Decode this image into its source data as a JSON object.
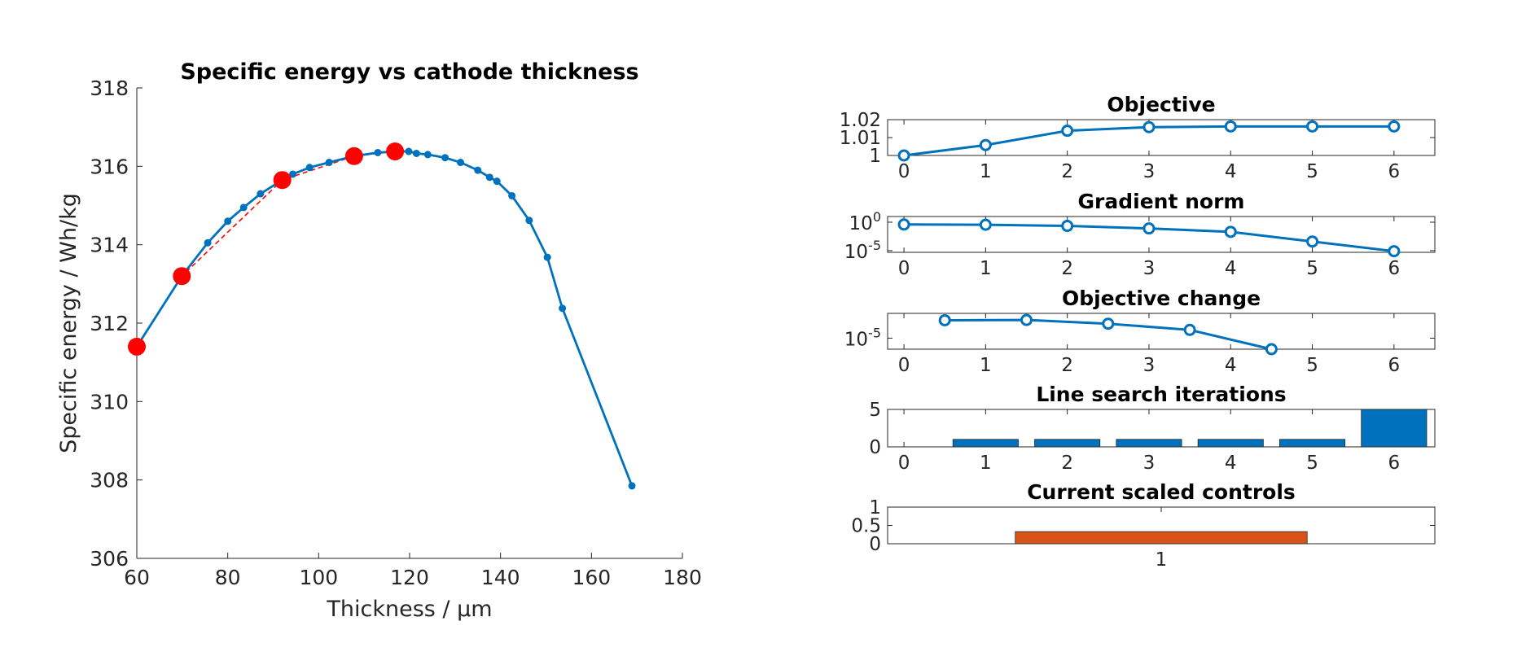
{
  "chart_data": [
    {
      "type": "line",
      "title": "Specific energy vs cathode thickness",
      "xlabel": "Thickness / µm",
      "ylabel": "Specific energy / Wh/kg",
      "xlim": [
        60,
        180
      ],
      "ylim": [
        306,
        318
      ],
      "x_ticks": [
        "60",
        "80",
        "100",
        "120",
        "140",
        "160",
        "180"
      ],
      "y_ticks": [
        "306",
        "308",
        "310",
        "312",
        "314",
        "316",
        "318"
      ],
      "grid": false,
      "series": [
        {
          "style": "solid-blue-dots",
          "color": "#0072BD",
          "points": [
            [
              60,
              311.4
            ],
            [
              69.9,
              313.2
            ],
            [
              75.6,
              314.05
            ],
            [
              80,
              314.6
            ],
            [
              83.5,
              314.95
            ],
            [
              87.2,
              315.3
            ],
            [
              92,
              315.65
            ],
            [
              94.3,
              315.8
            ],
            [
              98,
              315.97
            ],
            [
              102.3,
              316.1
            ],
            [
              107.8,
              316.26
            ],
            [
              113,
              316.35
            ],
            [
              116.8,
              316.38
            ],
            [
              119.8,
              316.38
            ],
            [
              121.5,
              316.33
            ],
            [
              124,
              316.3
            ],
            [
              127.8,
              316.22
            ],
            [
              131.2,
              316.1
            ],
            [
              135,
              315.9
            ],
            [
              137.6,
              315.72
            ],
            [
              139.2,
              315.62
            ],
            [
              142.5,
              315.25
            ],
            [
              146.3,
              314.62
            ],
            [
              150.3,
              313.68
            ],
            [
              153.6,
              312.38
            ],
            [
              168.9,
              307.85
            ]
          ]
        },
        {
          "style": "dashed-red",
          "color": "#FF0000",
          "points": [
            [
              60,
              311.4
            ],
            [
              69.9,
              313.2
            ],
            [
              92,
              315.65
            ],
            [
              107.8,
              316.26
            ],
            [
              116.8,
              316.38
            ]
          ]
        },
        {
          "style": "red-markers",
          "color": "#FF0000",
          "points": [
            [
              60,
              311.4
            ],
            [
              69.9,
              313.2
            ],
            [
              92,
              315.65
            ],
            [
              107.8,
              316.26
            ],
            [
              116.8,
              316.38
            ]
          ]
        }
      ]
    },
    {
      "type": "line",
      "title": "Objective",
      "x_ticks": [
        "0",
        "1",
        "2",
        "3",
        "4",
        "5",
        "6"
      ],
      "y_ticks": [
        "1",
        "1.01",
        "1.02"
      ],
      "xlim": [
        -0.2,
        6.5
      ],
      "ylim": [
        1,
        1.02
      ],
      "series": [
        {
          "color": "#0072BD",
          "x": [
            0,
            1,
            2,
            3,
            4,
            5,
            6
          ],
          "values": [
            1.0,
            1.0058,
            1.0138,
            1.0158,
            1.0162,
            1.0162,
            1.0162
          ]
        }
      ]
    },
    {
      "type": "line",
      "title": "Gradient norm",
      "y_scale": "log",
      "x_ticks": [
        "0",
        "1",
        "2",
        "3",
        "4",
        "5",
        "6"
      ],
      "y_ticks": [
        {
          "base": "10",
          "exp": "0"
        },
        {
          "base": "10",
          "exp": "-5"
        }
      ],
      "xlim": [
        -0.2,
        6.5
      ],
      "ylim_log10": [
        -5.3,
        1.0
      ],
      "series": [
        {
          "color": "#0072BD",
          "x": [
            0,
            1,
            2,
            3,
            4,
            5,
            6
          ],
          "log10_values": [
            -0.4,
            -0.45,
            -0.65,
            -1.1,
            -1.7,
            -3.4,
            -5.1
          ]
        }
      ]
    },
    {
      "type": "line",
      "title": "Objective change",
      "y_scale": "log",
      "x_ticks": [
        "0",
        "1",
        "2",
        "3",
        "4",
        "5",
        "6"
      ],
      "y_ticks": [
        {
          "base": "10",
          "exp": "-5"
        }
      ],
      "xlim": [
        -0.2,
        6.5
      ],
      "ylim_log10": [
        -5.8,
        -3.2
      ],
      "series": [
        {
          "color": "#0072BD",
          "x": [
            0.5,
            1.5,
            2.5,
            3.5,
            4.5
          ],
          "log10_values": [
            -3.7,
            -3.68,
            -3.95,
            -4.4,
            -5.8
          ]
        }
      ]
    },
    {
      "type": "bar",
      "title": "Line search iterations",
      "x_ticks": [
        "0",
        "1",
        "2",
        "3",
        "4",
        "5",
        "6"
      ],
      "y_ticks": [
        "0",
        "5"
      ],
      "xlim": [
        -0.2,
        6.5
      ],
      "ylim": [
        0,
        5
      ],
      "categories": [
        1,
        2,
        3,
        4,
        5,
        6
      ],
      "values": [
        1,
        1,
        1,
        1,
        1,
        5
      ],
      "color": "#0072BD"
    },
    {
      "type": "bar",
      "title": "Current scaled controls",
      "x_ticks": [
        "1"
      ],
      "y_ticks": [
        "0",
        "0.5",
        "1"
      ],
      "xlim": [
        0.25,
        1.75
      ],
      "ylim": [
        0,
        1
      ],
      "categories": [
        1
      ],
      "values": [
        0.33
      ],
      "color": "#D95319"
    }
  ]
}
